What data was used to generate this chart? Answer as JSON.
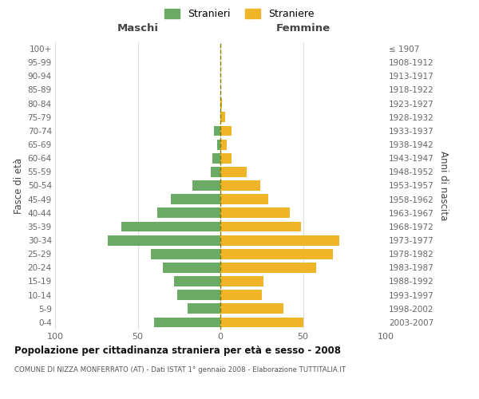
{
  "age_groups": [
    "0-4",
    "5-9",
    "10-14",
    "15-19",
    "20-24",
    "25-29",
    "30-34",
    "35-39",
    "40-44",
    "45-49",
    "50-54",
    "55-59",
    "60-64",
    "65-69",
    "70-74",
    "75-79",
    "80-84",
    "85-89",
    "90-94",
    "95-99",
    "100+"
  ],
  "birth_years": [
    "2003-2007",
    "1998-2002",
    "1993-1997",
    "1988-1992",
    "1983-1987",
    "1978-1982",
    "1973-1977",
    "1968-1972",
    "1963-1967",
    "1958-1962",
    "1953-1957",
    "1948-1952",
    "1943-1947",
    "1938-1942",
    "1933-1937",
    "1928-1932",
    "1923-1927",
    "1918-1922",
    "1913-1917",
    "1908-1912",
    "≤ 1907"
  ],
  "males": [
    40,
    20,
    26,
    28,
    35,
    42,
    68,
    60,
    38,
    30,
    17,
    6,
    5,
    2,
    4,
    0,
    0,
    0,
    0,
    0,
    0
  ],
  "females": [
    50,
    38,
    25,
    26,
    58,
    68,
    72,
    49,
    42,
    29,
    24,
    16,
    7,
    4,
    7,
    3,
    1,
    0,
    0,
    0,
    0
  ],
  "male_color": "#6aaa64",
  "female_color": "#f0b429",
  "dashed_line_color": "#808000",
  "grid_color": "#dddddd",
  "title": "Popolazione per cittadinanza straniera per età e sesso - 2008",
  "subtitle": "COMUNE DI NIZZA MONFERRATO (AT) - Dati ISTAT 1° gennaio 2008 - Elaborazione TUTTITALIA.IT",
  "header_left": "Maschi",
  "header_right": "Femmine",
  "ylabel_left": "Fasce di età",
  "ylabel_right": "Anni di nascita",
  "legend_male": "Stranieri",
  "legend_female": "Straniere",
  "xlim": 100,
  "bar_height": 0.75
}
